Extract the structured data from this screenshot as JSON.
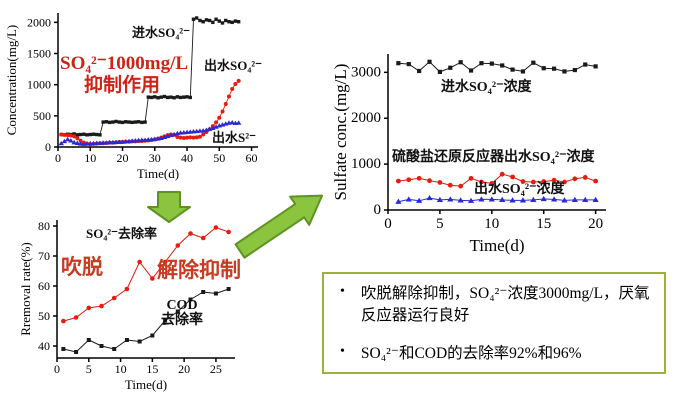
{
  "chart_data": [
    {
      "type": "line",
      "xlabel": "Time(d)",
      "ylabel": "Concentration(mg/L)",
      "xlim": [
        0,
        62
      ],
      "ylim": [
        0,
        2150
      ],
      "xticks": [
        0,
        10,
        20,
        30,
        40,
        50,
        60
      ],
      "yticks": [
        0,
        500,
        1000,
        1500,
        2000
      ],
      "legend_position": "in-plot annotations",
      "grid": false,
      "series": [
        {
          "name": "进水SO₄²⁻",
          "color": "#1a1a1a",
          "marker": "square",
          "msize": 3.4,
          "lw": 0.9,
          "x": [
            1,
            2,
            3,
            4,
            5,
            6,
            7,
            8,
            9,
            10,
            11,
            12,
            13,
            14,
            15,
            16,
            17,
            18,
            19,
            20,
            21,
            22,
            23,
            24,
            25,
            26,
            27,
            28,
            29,
            30,
            31,
            32,
            33,
            34,
            35,
            36,
            37,
            38,
            39,
            40,
            41,
            42,
            43,
            44,
            45,
            46,
            47,
            48,
            49,
            50,
            51,
            52,
            53,
            54,
            55,
            56
          ],
          "y": [
            200,
            195,
            205,
            200,
            210,
            195,
            200,
            205,
            195,
            200,
            205,
            200,
            195,
            400,
            405,
            395,
            400,
            410,
            400,
            395,
            405,
            400,
            395,
            400,
            405,
            395,
            400,
            800,
            795,
            805,
            790,
            800,
            810,
            795,
            800,
            790,
            805,
            795,
            800,
            805,
            795,
            2050,
            2070,
            2030,
            2010,
            2040,
            2030,
            2000,
            2050,
            2020,
            1990,
            2030,
            2010,
            2000,
            2020,
            2010
          ]
        },
        {
          "name": "出水SO₄²⁻",
          "color": "#e81c0e",
          "marker": "circle",
          "msize": 3.4,
          "lw": 0.9,
          "x": [
            1,
            2,
            3,
            4,
            5,
            6,
            7,
            8,
            9,
            10,
            11,
            12,
            13,
            14,
            15,
            16,
            17,
            18,
            19,
            20,
            21,
            22,
            23,
            24,
            25,
            26,
            27,
            28,
            29,
            30,
            31,
            32,
            33,
            34,
            35,
            36,
            37,
            38,
            39,
            40,
            41,
            42,
            43,
            44,
            45,
            46,
            47,
            48,
            49,
            50,
            51,
            52,
            53,
            54,
            55,
            56
          ],
          "y": [
            200,
            195,
            190,
            185,
            170,
            140,
            100,
            70,
            55,
            45,
            50,
            55,
            60,
            60,
            65,
            70,
            70,
            75,
            80,
            80,
            85,
            85,
            90,
            90,
            95,
            95,
            100,
            105,
            110,
            120,
            135,
            150,
            170,
            190,
            200,
            195,
            160,
            150,
            145,
            150,
            155,
            150,
            155,
            165,
            200,
            240,
            285,
            335,
            395,
            470,
            570,
            690,
            810,
            930,
            1010,
            1060
          ]
        },
        {
          "name": "出水S²⁻",
          "color": "#2a2ad4",
          "marker": "triangle",
          "msize": 3.4,
          "lw": 0.9,
          "x": [
            1,
            2,
            3,
            4,
            5,
            6,
            7,
            8,
            9,
            10,
            11,
            12,
            13,
            14,
            15,
            16,
            17,
            18,
            19,
            20,
            21,
            22,
            23,
            24,
            25,
            26,
            27,
            28,
            29,
            30,
            31,
            32,
            33,
            34,
            35,
            36,
            37,
            38,
            39,
            40,
            41,
            42,
            43,
            44,
            45,
            46,
            47,
            48,
            49,
            50,
            51,
            52,
            53,
            54,
            55,
            56
          ],
          "y": [
            55,
            90,
            120,
            100,
            70,
            60,
            50,
            45,
            50,
            55,
            55,
            60,
            60,
            65,
            65,
            70,
            70,
            75,
            75,
            80,
            85,
            90,
            95,
            100,
            105,
            110,
            110,
            115,
            120,
            125,
            130,
            140,
            155,
            170,
            185,
            200,
            215,
            225,
            230,
            235,
            240,
            245,
            250,
            255,
            260,
            270,
            285,
            300,
            320,
            340,
            355,
            370,
            385,
            390,
            380,
            385
          ]
        }
      ],
      "annotations": {
        "influent_label": "进水SO₄²⁻",
        "effluent_so4_label": "出水SO₄²⁻",
        "effluent_s_label": "出水S²⁻",
        "inhibit_line1": "SO₄²⁻1000mg/L",
        "inhibit_line2": "抑制作用"
      }
    },
    {
      "type": "line",
      "xlabel": "Time(d)",
      "ylabel": "Rremoval rate(%)",
      "xlim": [
        0,
        28
      ],
      "ylim": [
        36,
        82
      ],
      "xticks": [
        0,
        5,
        10,
        15,
        20,
        25
      ],
      "yticks": [
        40,
        50,
        60,
        70,
        80
      ],
      "legend_position": "in-plot annotations",
      "grid": false,
      "series": [
        {
          "name": "SO₄²⁻去除率",
          "color": "#e81c0e",
          "marker": "circle",
          "msize": 4,
          "lw": 1,
          "x": [
            1,
            3,
            5,
            7,
            9,
            11,
            13,
            15,
            17,
            19,
            21,
            23,
            25,
            27
          ],
          "y": [
            48.3,
            49.5,
            52.7,
            53.3,
            56,
            59,
            68,
            62.5,
            68,
            73.5,
            77.5,
            76,
            79.5,
            78
          ]
        },
        {
          "name": "COD去除率",
          "color": "#1a1a1a",
          "marker": "square",
          "msize": 4,
          "lw": 1,
          "x": [
            1,
            3,
            5,
            7,
            9,
            11,
            13,
            15,
            17,
            19,
            21,
            23,
            25,
            27
          ],
          "y": [
            39,
            38,
            42,
            40,
            39,
            42,
            41.5,
            43.5,
            48.5,
            51.5,
            55.5,
            58,
            57.5,
            59
          ]
        }
      ],
      "annotations": {
        "so4_removal_label": "SO₄²⁻去除率",
        "strip_label": "吹脱",
        "release_label": "解除抑制",
        "cod_label": "COD\n去除率"
      }
    },
    {
      "type": "line",
      "xlabel": "Time(d)",
      "ylabel": "Sulfate conc.(mg/L)",
      "xlim": [
        0,
        21
      ],
      "ylim": [
        0,
        3400
      ],
      "xticks": [
        0,
        5,
        10,
        15,
        20
      ],
      "yticks": [
        0,
        1000,
        2000,
        3000
      ],
      "legend_position": "in-plot annotations",
      "grid": false,
      "series": [
        {
          "name": "进水SO₄²⁻浓度",
          "color": "#1a1a1a",
          "marker": "square",
          "msize": 4.2,
          "lw": 1,
          "x": [
            1,
            2,
            3,
            4,
            5,
            6,
            7,
            8,
            9,
            10,
            11,
            12,
            13,
            14,
            15,
            16,
            17,
            18,
            19,
            20
          ],
          "y": [
            3200,
            3180,
            3030,
            3230,
            3010,
            3100,
            3220,
            3040,
            3200,
            3190,
            3150,
            3060,
            3020,
            3210,
            3090,
            3080,
            3020,
            3050,
            3170,
            3130
          ]
        },
        {
          "name": "硫酸盐还原反应器出水SO₄²⁻浓度",
          "color": "#e81c0e",
          "marker": "circle",
          "msize": 4.2,
          "lw": 1,
          "x": [
            1,
            2,
            3,
            4,
            5,
            6,
            7,
            8,
            9,
            10,
            11,
            12,
            13,
            14,
            15,
            16,
            17,
            18,
            19,
            20
          ],
          "y": [
            630,
            660,
            690,
            640,
            600,
            540,
            520,
            690,
            610,
            580,
            780,
            720,
            620,
            610,
            620,
            650,
            610,
            680,
            710,
            630
          ]
        },
        {
          "name": "出水SO₄²⁻浓度",
          "color": "#2a2ad4",
          "marker": "triangle",
          "msize": 4.2,
          "lw": 1,
          "x": [
            1,
            2,
            3,
            4,
            5,
            6,
            7,
            8,
            9,
            10,
            11,
            12,
            13,
            14,
            15,
            16,
            17,
            18,
            19,
            20
          ],
          "y": [
            180,
            230,
            200,
            260,
            220,
            230,
            210,
            200,
            230,
            230,
            220,
            210,
            210,
            220,
            240,
            230,
            210,
            220,
            220,
            220
          ]
        }
      ],
      "annotations": {
        "influent_label": "进水SO₄²⁻浓度",
        "reactor_effluent_label": "硫酸盐还原反应器出水SO₄²⁻浓度",
        "effluent_label": "出水SO₄²⁻浓度"
      }
    }
  ],
  "summary_box": {
    "bullet_glyph": "•",
    "bullets": [
      "吹脱解除抑制，SO₄²⁻浓度3000mg/L，厌氧反应器运行良好",
      "SO₄²⁻和COD的去除率92%和96%"
    ]
  },
  "colors": {
    "series_black": "#1a1a1a",
    "series_red": "#e81c0e",
    "series_blue": "#2a2ad4",
    "annotation_red_1": "#cd2415",
    "annotation_red_2": "#c73b22",
    "arrow_fill": "#8bc53f",
    "arrow_stroke": "#5e9321",
    "box_border": "#9ab43a"
  }
}
